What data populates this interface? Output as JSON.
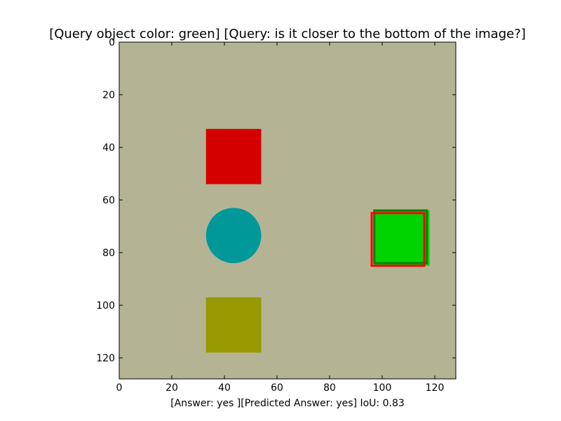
{
  "chart_data": {
    "type": "image",
    "title": "[Query object color: green] [Query: is it closer to the bottom of the image?]",
    "xlabel": "[Answer: yes ][Predicted Answer: yes] IoU: 0.83",
    "ylabel": "",
    "xlim": [
      0,
      128
    ],
    "ylim": [
      128,
      0
    ],
    "x_ticks": [
      "0",
      "20",
      "40",
      "60",
      "80",
      "100",
      "120"
    ],
    "y_ticks": [
      "0",
      "20",
      "40",
      "60",
      "80",
      "100",
      "120"
    ],
    "grid": false,
    "background_color": "#b4b494",
    "objects": [
      {
        "shape": "square",
        "color": "#d40000",
        "x": [
          33,
          54
        ],
        "y": [
          33,
          54
        ]
      },
      {
        "shape": "circle",
        "color": "#009898",
        "cx": 43.5,
        "cy": 73.5,
        "r": 10.5
      },
      {
        "shape": "square",
        "color": "#989800",
        "x": [
          33,
          54
        ],
        "y": [
          97,
          118
        ]
      },
      {
        "shape": "square",
        "color": "#00d400",
        "x": [
          97,
          118
        ],
        "y": [
          64,
          85
        ]
      }
    ],
    "boxes": [
      {
        "label": "ground_truth",
        "color": "#008000",
        "x": [
          97,
          117
        ],
        "y": [
          64,
          84
        ]
      },
      {
        "label": "prediction",
        "color": "#ff0000",
        "x": [
          96,
          116
        ],
        "y": [
          65,
          85
        ]
      }
    ]
  }
}
